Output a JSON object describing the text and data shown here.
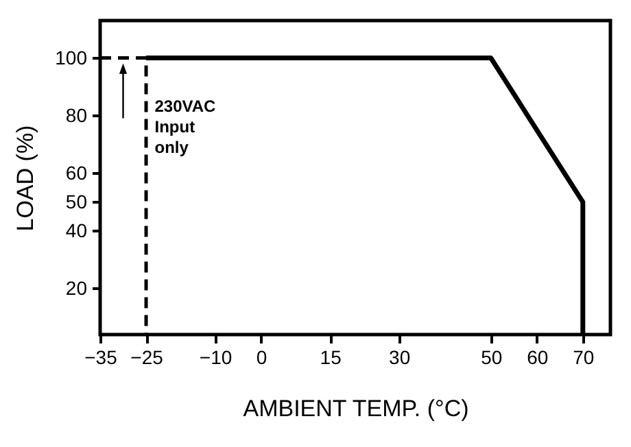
{
  "chart_data": {
    "type": "line",
    "xlabel": "AMBIENT TEMP. (°C)",
    "ylabel": "LOAD (%)",
    "xlim": [
      -35,
      76
    ],
    "xticks": [
      -35,
      -25,
      -10,
      0,
      15,
      30,
      50,
      60,
      70
    ],
    "ylim": [
      4,
      113
    ],
    "yticks": [
      20,
      40,
      50,
      60,
      80,
      100
    ],
    "series": [
      {
        "color": "#000000",
        "line_style": "solid",
        "x": [
          -25,
          50,
          70,
          70
        ],
        "values": [
          100,
          100,
          50,
          4
        ]
      },
      {
        "color": "#000000",
        "line_style": "dashed",
        "x": [
          -35,
          -25,
          -25
        ],
        "values": [
          100,
          100,
          4
        ]
      }
    ],
    "annotations": [
      {
        "text": "230VAC Input only",
        "x": -30,
        "y": 100
      }
    ],
    "grid": false,
    "marker": "none"
  }
}
